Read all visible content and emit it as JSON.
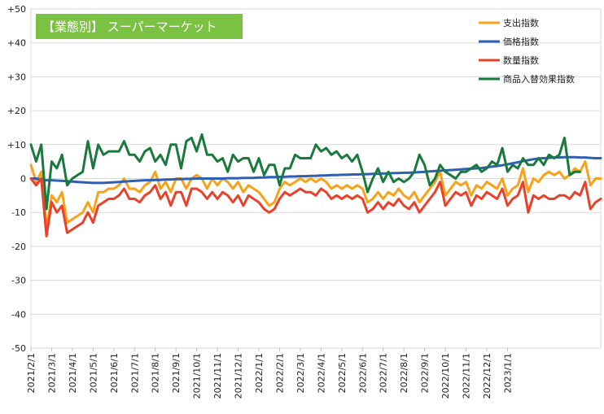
{
  "chart_data": {
    "type": "line",
    "title": "【業態別】 スーパーマーケット",
    "ylim": [
      -50,
      50
    ],
    "yticks": [
      "+50",
      "+40",
      "+30",
      "+20",
      "+10",
      "0",
      "-10",
      "-20",
      "-30",
      "-40",
      "-50"
    ],
    "ytick_values": [
      50,
      40,
      30,
      20,
      10,
      0,
      -10,
      -20,
      -30,
      -40,
      -50
    ],
    "xtick_labels": [
      "2021/2/1",
      "2021/3/1",
      "2021/4/1",
      "2021/5/1",
      "2021/6/1",
      "2021/7/1",
      "2021/8/1",
      "2021/9/1",
      "2021/10/1",
      "2021/11/1",
      "2021/12/1",
      "2022/1/1",
      "2022/2/1",
      "2022/3/1",
      "2022/4/1",
      "2022/5/1",
      "2022/6/1",
      "2022/7/1",
      "2022/8/1",
      "2022/9/1",
      "2022/10/1",
      "2022/11/1",
      "2022/12/1",
      "2023/1/1"
    ],
    "xtick_positions": [
      0,
      4,
      8,
      12,
      16,
      20,
      24,
      28,
      32,
      36,
      40,
      44,
      48,
      52,
      56,
      60,
      64,
      68,
      72,
      76,
      80,
      84,
      88,
      92
    ],
    "legend_position": "top-right",
    "grid": true,
    "series": [
      {
        "name": "支出指数",
        "color": "#f7a21b",
        "values": [
          4,
          -1,
          2,
          -15,
          -5,
          -7,
          -4,
          -13,
          -12,
          -11,
          -10,
          -7,
          -10,
          -4,
          -4,
          -3,
          -3,
          -2,
          0,
          -3,
          -3,
          -4,
          -2,
          -1,
          2,
          -3,
          -1,
          -4,
          0,
          0,
          -3,
          0,
          1,
          0,
          -3,
          0,
          -2,
          0,
          -1,
          -3,
          -1,
          -4,
          -2,
          -3,
          -4,
          -6,
          -8,
          -7,
          -3,
          -1,
          -2,
          -1,
          0,
          -1,
          0,
          -1,
          0,
          -1,
          -3,
          -2,
          -3,
          -2,
          -3,
          -2,
          -3,
          -7,
          -6,
          -4,
          -6,
          -4,
          -5,
          -3,
          -5,
          -6,
          -4,
          -7,
          -5,
          -3,
          -1,
          2,
          -5,
          -3,
          -1,
          -2,
          -1,
          -5,
          -2,
          -3,
          -1,
          -2,
          -3,
          0,
          -5,
          -3,
          -2,
          3,
          -4,
          0,
          -1,
          1,
          2,
          1,
          2,
          0,
          1,
          3,
          2,
          5,
          -2,
          0,
          0
        ]
      },
      {
        "name": "価格指数",
        "color": "#2e5fb5",
        "values": [
          0,
          0,
          -0.3,
          -0.5,
          -0.5,
          -0.6,
          -0.7,
          -0.8,
          -0.9,
          -1,
          -1.1,
          -1.2,
          -1.3,
          -1.3,
          -1.3,
          -1.2,
          -1.1,
          -1,
          -0.9,
          -0.8,
          -0.7,
          -0.6,
          -0.5,
          -0.5,
          -0.4,
          -0.4,
          -0.3,
          -0.3,
          -0.2,
          -0.2,
          -0.1,
          -0.1,
          0,
          0,
          0,
          0,
          0,
          0,
          0.1,
          0.1,
          0.1,
          0.2,
          0.2,
          0.2,
          0.3,
          0.3,
          0.4,
          0.4,
          0.5,
          0.5,
          0.6,
          0.6,
          0.7,
          0.7,
          0.8,
          0.8,
          0.9,
          0.9,
          1,
          1,
          1.1,
          1.1,
          1.2,
          1.2,
          1.3,
          1.3,
          1.4,
          1.4,
          1.5,
          1.5,
          1.6,
          1.6,
          1.7,
          1.7,
          1.8,
          1.9,
          2,
          2.1,
          2.2,
          2.3,
          2.4,
          2.5,
          2.6,
          2.7,
          2.8,
          2.9,
          3,
          3.1,
          3.3,
          3.5,
          3.7,
          3.9,
          4.2,
          4.5,
          4.8,
          5.1,
          5.4,
          5.7,
          5.9,
          6,
          6.1,
          6.2,
          6.2,
          6.3,
          6.3,
          6.3,
          6.2,
          6.2,
          6.1,
          6,
          6
        ]
      },
      {
        "name": "数量指数",
        "color": "#e8412c",
        "values": [
          0,
          -2,
          0,
          -17,
          -7,
          -10,
          -8,
          -16,
          -15,
          -14,
          -13,
          -10,
          -13,
          -8,
          -7,
          -6,
          -6,
          -5,
          -3,
          -6,
          -6,
          -7,
          -5,
          -4,
          -2,
          -6,
          -4,
          -8,
          -4,
          -4,
          -8,
          -3,
          -3,
          -4,
          -6,
          -4,
          -6,
          -4,
          -5,
          -7,
          -5,
          -8,
          -5,
          -6,
          -7,
          -9,
          -10,
          -9,
          -6,
          -4,
          -5,
          -4,
          -3,
          -4,
          -4,
          -5,
          -3,
          -4,
          -6,
          -5,
          -6,
          -5,
          -6,
          -5,
          -6,
          -10,
          -9,
          -7,
          -9,
          -7,
          -8,
          -6,
          -8,
          -9,
          -7,
          -10,
          -8,
          -6,
          -4,
          -1,
          -8,
          -6,
          -4,
          -5,
          -4,
          -8,
          -5,
          -6,
          -4,
          -5,
          -6,
          -3,
          -8,
          -6,
          -5,
          -1,
          -10,
          -5,
          -6,
          -5,
          -6,
          -6,
          -5,
          -5,
          -6,
          -4,
          -5,
          -1,
          -9,
          -7,
          -6
        ]
      },
      {
        "name": "商品入替効果指数",
        "color": "#1a7a3e",
        "values": [
          10,
          5,
          10,
          -9,
          5,
          3,
          7,
          -2,
          0,
          1,
          2,
          11,
          3,
          10,
          7,
          8,
          8,
          8,
          11,
          7,
          7,
          5,
          8,
          9,
          5,
          7,
          4,
          10,
          10,
          3,
          11,
          12,
          8,
          13,
          7,
          7,
          5,
          6,
          2,
          7,
          5,
          6,
          6,
          2,
          6,
          1,
          4,
          4,
          -2,
          3,
          3,
          7,
          6,
          6,
          6,
          10,
          8,
          9,
          7,
          8,
          6,
          7,
          5,
          7,
          2,
          -4,
          0,
          3,
          -1,
          2,
          -1,
          0,
          -1,
          0,
          2,
          7,
          4,
          -2,
          0,
          4,
          2,
          1,
          0,
          2,
          2,
          3,
          4,
          2,
          3,
          5,
          4,
          9,
          2,
          4,
          3,
          6,
          4,
          4,
          6,
          4,
          7,
          6,
          7,
          12,
          1,
          2,
          2
        ]
      }
    ]
  }
}
